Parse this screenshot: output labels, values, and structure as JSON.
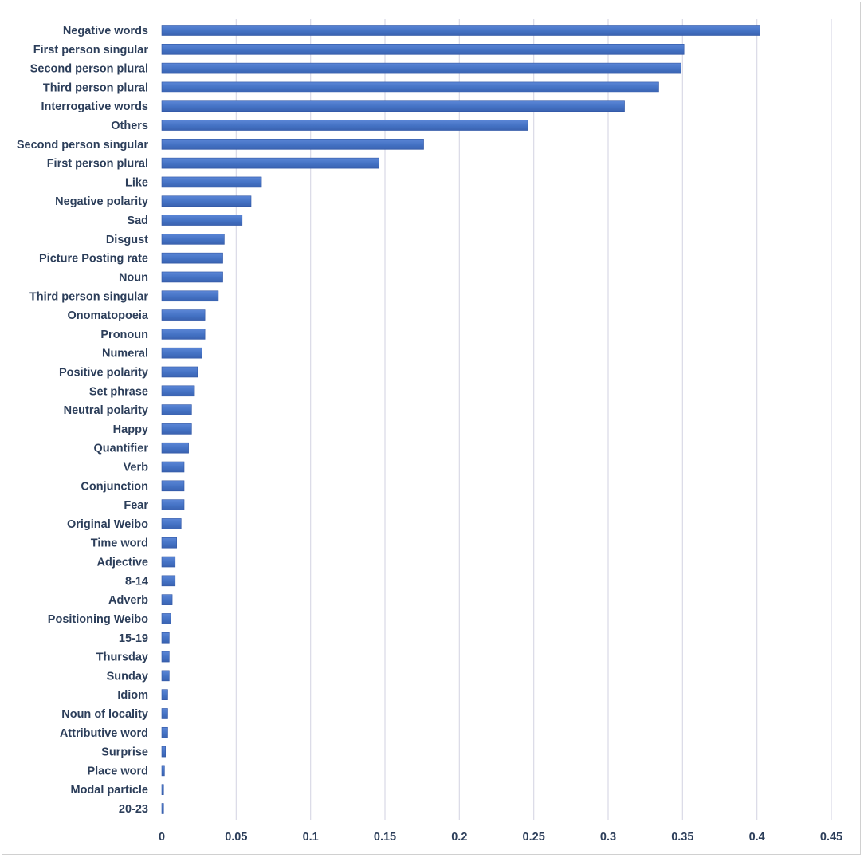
{
  "chart_data": {
    "type": "bar",
    "orientation": "horizontal",
    "title": "",
    "xlabel": "",
    "ylabel": "",
    "xlim": [
      0,
      0.45
    ],
    "grid": true,
    "legend": "none",
    "bar_color": "#4472C4",
    "bar_edge_color": "#2F55A4",
    "x_ticks": [
      "0",
      "0.05",
      "0.1",
      "0.15",
      "0.2",
      "0.25",
      "0.3",
      "0.35",
      "0.4",
      "0.45"
    ],
    "x_tick_values": [
      0,
      0.05,
      0.1,
      0.15,
      0.2,
      0.25,
      0.3,
      0.35,
      0.4,
      0.45
    ],
    "categories": [
      "Negative words",
      "First person singular",
      "Second person plural",
      "Third person plural",
      "Interrogative words",
      "Others",
      "Second person singular",
      "First person plural",
      "Like",
      "Negative polarity",
      "Sad",
      "Disgust",
      "Picture Posting rate",
      "Noun",
      "Third person singular",
      "Onomatopoeia",
      "Pronoun",
      "Numeral",
      "Positive polarity",
      "Set phrase",
      "Neutral polarity",
      "Happy",
      "Quantifier",
      "Verb",
      "Conjunction",
      "Fear",
      "Original Weibo",
      "Time word",
      "Adjective",
      "8-14",
      "Adverb",
      "Positioning Weibo",
      "15-19",
      "Thursday",
      "Sunday",
      "Idiom",
      "Noun of locality",
      "Attributive word",
      "Surprise",
      "Place word",
      "Modal particle",
      "20-23"
    ],
    "values": [
      0.402,
      0.351,
      0.349,
      0.334,
      0.311,
      0.246,
      0.176,
      0.146,
      0.067,
      0.06,
      0.054,
      0.042,
      0.041,
      0.041,
      0.038,
      0.029,
      0.029,
      0.027,
      0.024,
      0.022,
      0.02,
      0.02,
      0.018,
      0.015,
      0.015,
      0.015,
      0.013,
      0.01,
      0.009,
      0.009,
      0.007,
      0.006,
      0.005,
      0.005,
      0.005,
      0.004,
      0.004,
      0.004,
      0.0025,
      0.0018,
      0.0012,
      0.0012
    ]
  }
}
